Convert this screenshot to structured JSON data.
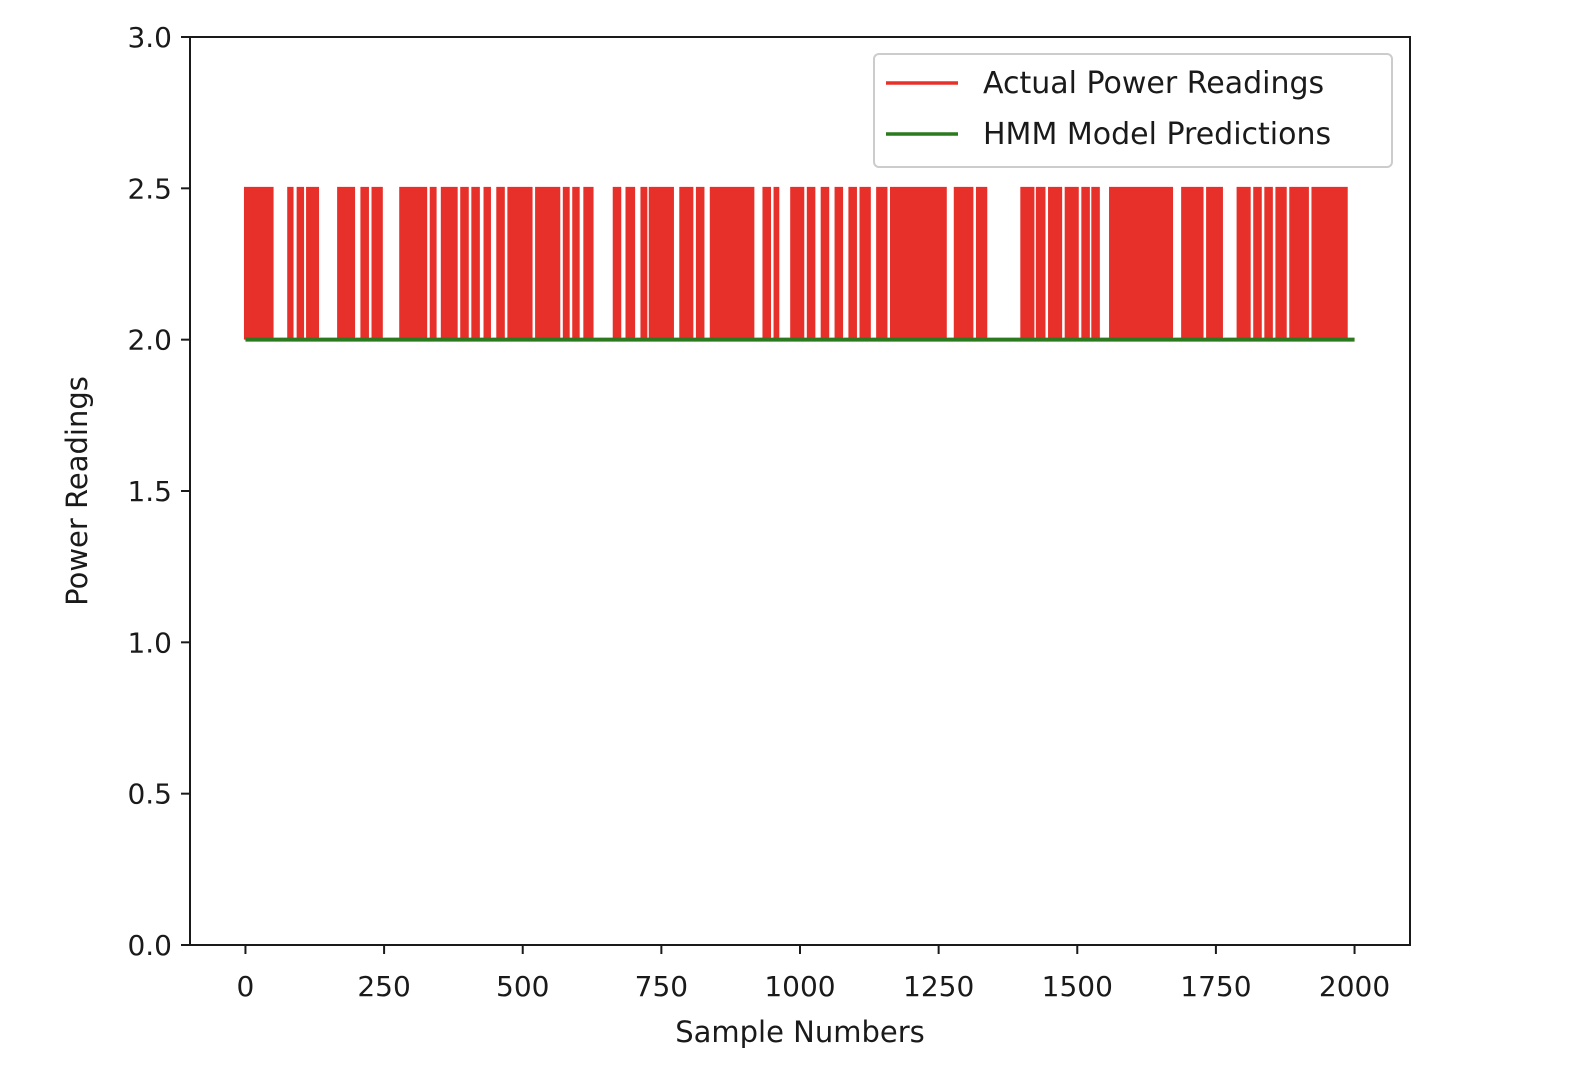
{
  "chart_data": {
    "type": "line",
    "title": "",
    "xlabel": "Sample Numbers",
    "ylabel": "Power Readings",
    "xlim": [
      -100,
      2100
    ],
    "ylim": [
      0.0,
      3.0
    ],
    "xticks": [
      0,
      250,
      500,
      750,
      1000,
      1250,
      1500,
      1750,
      2000
    ],
    "xtick_labels": [
      "0",
      "250",
      "500",
      "750",
      "1000",
      "1250",
      "1500",
      "1750",
      "2000"
    ],
    "yticks": [
      0.0,
      0.5,
      1.0,
      1.5,
      2.0,
      2.5,
      3.0
    ],
    "ytick_labels": [
      "0.0",
      "0.5",
      "1.0",
      "1.5",
      "2.0",
      "2.5",
      "3.0"
    ],
    "grid": false,
    "legend_position": "top-right",
    "series": [
      {
        "name": "Actual Power Readings",
        "color": "#e8302a",
        "kind": "binary-step",
        "low_value": 2.0,
        "high_value": 2.5,
        "x_range": [
          0,
          2000
        ],
        "high_intervals": [
          [
            0,
            48
          ],
          [
            78,
            84
          ],
          [
            95,
            103
          ],
          [
            112,
            130
          ],
          [
            168,
            195
          ],
          [
            210,
            220
          ],
          [
            230,
            245
          ],
          [
            280,
            325
          ],
          [
            335,
            342
          ],
          [
            355,
            380
          ],
          [
            390,
            400
          ],
          [
            410,
            420
          ],
          [
            432,
            440
          ],
          [
            455,
            465
          ],
          [
            475,
            515
          ],
          [
            525,
            540
          ],
          [
            545,
            565
          ],
          [
            575,
            582
          ],
          [
            592,
            600
          ],
          [
            612,
            625
          ],
          [
            665,
            675
          ],
          [
            688,
            700
          ],
          [
            715,
            722
          ],
          [
            730,
            770
          ],
          [
            785,
            805
          ],
          [
            815,
            825
          ],
          [
            840,
            865
          ],
          [
            870,
            915
          ],
          [
            935,
            945
          ],
          [
            955,
            960
          ],
          [
            985,
            1005
          ],
          [
            1015,
            1025
          ],
          [
            1040,
            1050
          ],
          [
            1065,
            1075
          ],
          [
            1090,
            1100
          ],
          [
            1110,
            1125
          ],
          [
            1140,
            1155
          ],
          [
            1165,
            1185
          ],
          [
            1190,
            1225
          ],
          [
            1230,
            1262
          ],
          [
            1280,
            1310
          ],
          [
            1320,
            1335
          ],
          [
            1400,
            1420
          ],
          [
            1428,
            1440
          ],
          [
            1450,
            1470
          ],
          [
            1480,
            1500
          ],
          [
            1510,
            1520
          ],
          [
            1528,
            1538
          ],
          [
            1560,
            1580
          ],
          [
            1585,
            1610
          ],
          [
            1615,
            1640
          ],
          [
            1645,
            1670
          ],
          [
            1690,
            1700
          ],
          [
            1705,
            1725
          ],
          [
            1735,
            1760
          ],
          [
            1790,
            1810
          ],
          [
            1820,
            1830
          ],
          [
            1840,
            1850
          ],
          [
            1860,
            1875
          ],
          [
            1885,
            1900
          ],
          [
            1905,
            1915
          ],
          [
            1925,
            1950
          ],
          [
            1955,
            1975
          ],
          [
            1978,
            1985
          ]
        ]
      },
      {
        "name": "HMM Model Predictions",
        "color": "#2c7a1f",
        "x": [
          0,
          2000
        ],
        "y": [
          2.0,
          2.0
        ]
      }
    ]
  }
}
